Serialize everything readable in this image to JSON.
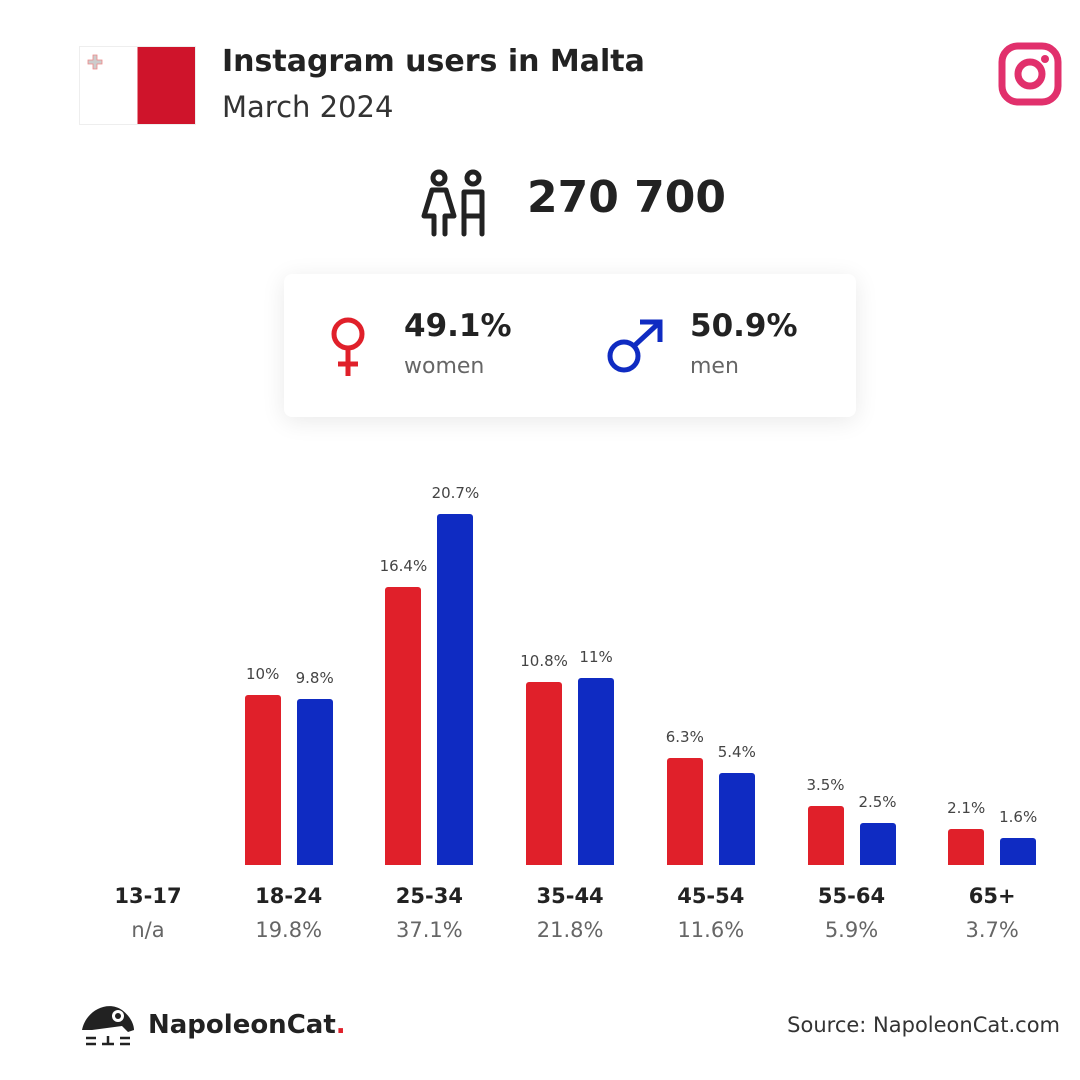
{
  "header": {
    "title": "Instagram users in Malta",
    "subtitle": "March 2024"
  },
  "total_users": "270 700",
  "gender": {
    "women": {
      "pct": "49.1%",
      "label": "women",
      "color": "#e0202a"
    },
    "men": {
      "pct": "50.9%",
      "label": "men",
      "color": "#0f2bc2"
    }
  },
  "chart_data": {
    "type": "bar",
    "categories": [
      "13-17",
      "18-24",
      "25-34",
      "35-44",
      "45-54",
      "55-64",
      "65+"
    ],
    "category_shares": [
      "n/a",
      "19.8%",
      "37.1%",
      "21.8%",
      "11.6%",
      "5.9%",
      "3.7%"
    ],
    "series": [
      {
        "name": "women",
        "color": "#e0202a",
        "values": [
          null,
          10,
          16.4,
          10.8,
          6.3,
          3.5,
          2.1
        ],
        "labels": [
          "",
          "10%",
          "16.4%",
          "10.8%",
          "6.3%",
          "3.5%",
          "2.1%"
        ]
      },
      {
        "name": "men",
        "color": "#0f2bc2",
        "values": [
          null,
          9.8,
          20.7,
          11,
          5.4,
          2.5,
          1.6
        ],
        "labels": [
          "",
          "9.8%",
          "20.7%",
          "11%",
          "5.4%",
          "2.5%",
          "1.6%"
        ]
      }
    ],
    "ylim": [
      0,
      21
    ]
  },
  "footer": {
    "brand": "NapoleonCat",
    "brand_dot": ".",
    "source": "Source: NapoleonCat.com"
  }
}
